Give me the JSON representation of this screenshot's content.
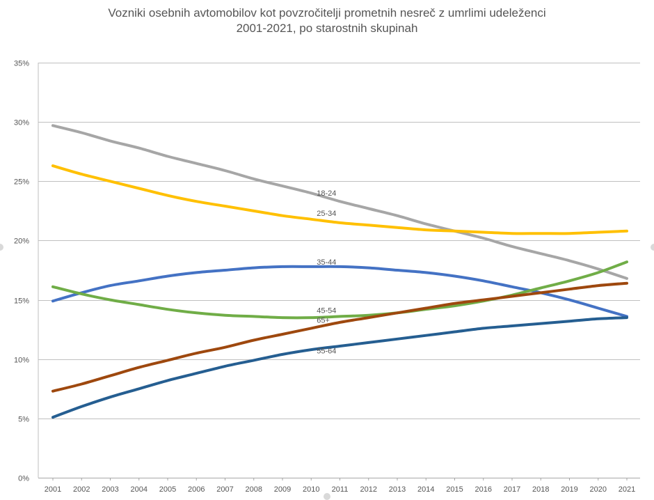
{
  "chart_data": {
    "type": "line",
    "title_line1": "Vozniki osebnih avtomobilov kot povzročitelji prometnih nesreč z umrlimi udeleženci",
    "title_line2": "2001-2021, po starostnih skupinah",
    "x": [
      2001,
      2002,
      2003,
      2004,
      2005,
      2006,
      2007,
      2008,
      2009,
      2010,
      2011,
      2012,
      2013,
      2014,
      2015,
      2016,
      2017,
      2018,
      2019,
      2020,
      2021
    ],
    "ylim": [
      0,
      35
    ],
    "yticks": [
      0,
      5,
      10,
      15,
      20,
      25,
      30,
      35
    ],
    "ytick_labels": [
      "0%",
      "5%",
      "10%",
      "15%",
      "20%",
      "25%",
      "30%",
      "35%"
    ],
    "grid": true,
    "series": [
      {
        "name": "18-24",
        "color": "#a6a6a6",
        "label_year": 2010,
        "label_value": 23.6,
        "values": [
          29.7,
          29.1,
          28.4,
          27.8,
          27.1,
          26.5,
          25.9,
          25.2,
          24.6,
          24.0,
          23.3,
          22.7,
          22.1,
          21.4,
          20.8,
          20.2,
          19.5,
          18.9,
          18.3,
          17.6,
          16.8
        ]
      },
      {
        "name": "25-34",
        "color": "#ffc000",
        "label_year": 2010,
        "label_value": 21.9,
        "values": [
          26.3,
          25.6,
          25.0,
          24.4,
          23.8,
          23.3,
          22.9,
          22.5,
          22.1,
          21.8,
          21.5,
          21.3,
          21.1,
          20.9,
          20.8,
          20.7,
          20.6,
          20.6,
          20.6,
          20.7,
          20.8
        ]
      },
      {
        "name": "35-44",
        "color": "#4472c4",
        "label_year": 2010,
        "label_value": 17.8,
        "values": [
          14.9,
          15.6,
          16.2,
          16.6,
          17.0,
          17.3,
          17.5,
          17.7,
          17.8,
          17.8,
          17.8,
          17.7,
          17.5,
          17.3,
          17.0,
          16.6,
          16.1,
          15.6,
          15.0,
          14.3,
          13.6
        ]
      },
      {
        "name": "45-54",
        "color": "#70ad47",
        "label_year": 2010,
        "label_value": 13.7,
        "values": [
          16.1,
          15.5,
          15.0,
          14.6,
          14.2,
          13.9,
          13.7,
          13.6,
          13.5,
          13.5,
          13.6,
          13.7,
          13.9,
          14.2,
          14.5,
          14.9,
          15.4,
          16.0,
          16.6,
          17.3,
          18.2
        ]
      },
      {
        "name": "65+",
        "color": "#9e480e",
        "label_year": 2010,
        "label_value": 12.9,
        "values": [
          7.3,
          7.9,
          8.6,
          9.3,
          9.9,
          10.5,
          11.0,
          11.6,
          12.1,
          12.6,
          13.1,
          13.5,
          13.9,
          14.3,
          14.7,
          15.0,
          15.3,
          15.6,
          15.9,
          16.2,
          16.4
        ]
      },
      {
        "name": "55-64",
        "color": "#255e91",
        "label_year": 2010,
        "label_value": 10.3,
        "values": [
          5.1,
          6.0,
          6.8,
          7.5,
          8.2,
          8.8,
          9.4,
          9.9,
          10.4,
          10.8,
          11.1,
          11.4,
          11.7,
          12.0,
          12.3,
          12.6,
          12.8,
          13.0,
          13.2,
          13.4,
          13.5
        ]
      }
    ]
  }
}
